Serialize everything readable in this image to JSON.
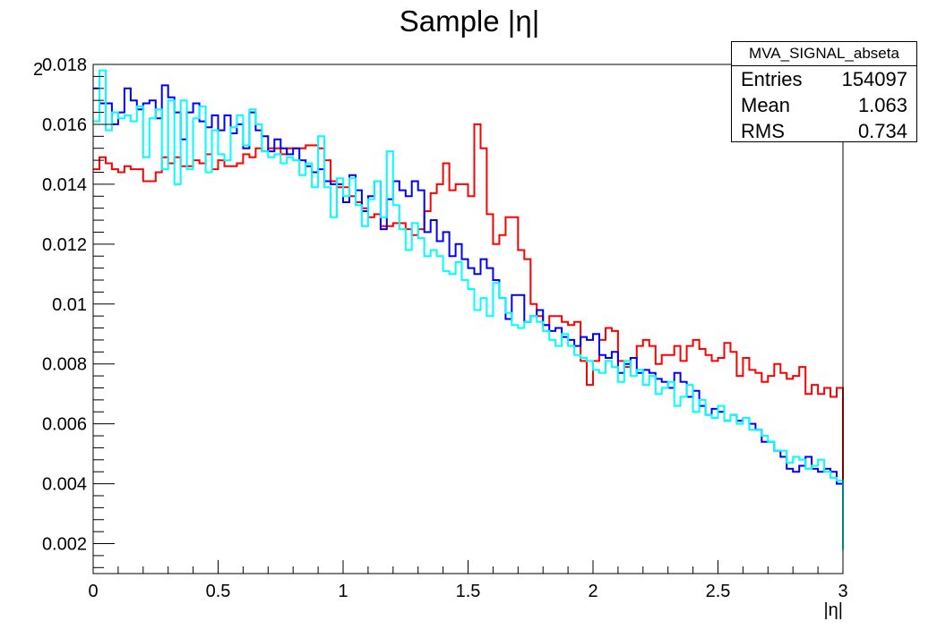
{
  "chart_data": {
    "type": "line",
    "title": "Sample |η|",
    "xlabel": "|η|",
    "ylabel": "",
    "xlim": [
      0,
      3
    ],
    "ylim": [
      0.001,
      0.018
    ],
    "x_ticks": [
      "0",
      "0.5",
      "1",
      "1.5",
      "2",
      "2.5",
      "3"
    ],
    "y_ticks": [
      "0.002",
      "0.004",
      "0.006",
      "0.008",
      "0.01",
      "0.012",
      "0.014",
      "0.016",
      "0.018"
    ],
    "y_exponent_label": "2",
    "bin_width": 0.025,
    "grid": false,
    "legend": "none",
    "series": [
      {
        "color": "#ff0000",
        "values": [
          0.0145,
          0.0149,
          0.0147,
          0.0145,
          0.0144,
          0.0146,
          0.0145,
          0.0145,
          0.0141,
          0.0141,
          0.0144,
          0.0149,
          0.0147,
          0.0149,
          0.0146,
          0.0146,
          0.0148,
          0.0147,
          0.015,
          0.0145,
          0.0148,
          0.0146,
          0.0146,
          0.0147,
          0.015,
          0.0149,
          0.0152,
          0.0151,
          0.0152,
          0.0152,
          0.015,
          0.0152,
          0.0152,
          0.0152,
          0.0153,
          0.0153,
          0.0152,
          0.0148,
          0.0141,
          0.0139,
          0.0139,
          0.0136,
          0.0134,
          0.0132,
          0.0129,
          0.013,
          0.0126,
          0.0126,
          0.0127,
          0.0127,
          0.0125,
          0.0123,
          0.0125,
          0.0131,
          0.0137,
          0.014,
          0.0147,
          0.0138,
          0.014,
          0.014,
          0.0136,
          0.016,
          0.0152,
          0.013,
          0.012,
          0.0123,
          0.0129,
          0.0129,
          0.0118,
          0.0115,
          0.01,
          0.0096,
          0.0093,
          0.0096,
          0.0096,
          0.0094,
          0.0093,
          0.0094,
          0.0081,
          0.0073,
          0.0081,
          0.0088,
          0.0092,
          0.0091,
          0.0081,
          0.0079,
          0.0082,
          0.0086,
          0.0088,
          0.0086,
          0.008,
          0.0083,
          0.0083,
          0.0086,
          0.0081,
          0.0086,
          0.0088,
          0.0085,
          0.0083,
          0.0081,
          0.0082,
          0.0087,
          0.0084,
          0.0076,
          0.0082,
          0.0078,
          0.0077,
          0.0074,
          0.0076,
          0.008,
          0.0077,
          0.0075,
          0.0076,
          0.0079,
          0.007,
          0.0073,
          0.007,
          0.0072,
          0.0069,
          0.0072,
          0.0061,
          0.0066,
          0.0066,
          0.0072,
          0.0065,
          0.0058,
          0.0057,
          0.0055,
          0.0051,
          0.0049,
          0.0048,
          0.0049,
          0.005,
          0.0046,
          0.005,
          0.0044,
          0.004,
          0.0045,
          0.0039,
          0.0042,
          0.0046,
          0.0043,
          0.004,
          0.0038,
          0.0035,
          0.0037,
          0.0044,
          0.0048,
          0.0043,
          0.0047,
          0.0045,
          0.004,
          0.0034,
          0.003,
          0.0034,
          0.0038,
          0.0035,
          0.0031,
          0.0036,
          0.0041,
          0.0039,
          0.0042,
          0.004,
          0.0041,
          0.0038,
          0.0035,
          0.0037,
          0.0038,
          0.0036,
          0.004,
          0.0038,
          0.0041,
          0.0043,
          0.0039,
          0.0043,
          0.0044,
          0.0041,
          0.0039,
          0.0038,
          0.004,
          0.0041,
          0.0043,
          0.004,
          0.0045,
          0.0042,
          0.0044,
          0.0037,
          0.0044,
          0.0049,
          0.0044,
          0.0052,
          0.0043,
          0.0045,
          0.0042,
          0.0049,
          0.0051,
          0.0049,
          0.0053,
          0.0049,
          0.0044,
          0.0046,
          0.0054,
          0.0046,
          0.0041,
          0.0035,
          0.0047,
          0.0049,
          0.0042,
          0.0047,
          0.0048,
          0.0044,
          0.0044,
          0.0047,
          0.0046,
          0.0045,
          0.0048
        ]
      },
      {
        "color": "#0000ff",
        "values": [
          0.0172,
          0.0167,
          0.0167,
          0.016,
          0.0164,
          0.0172,
          0.0168,
          0.0165,
          0.0167,
          0.0168,
          0.0162,
          0.0173,
          0.0169,
          0.0164,
          0.0155,
          0.0164,
          0.0167,
          0.0161,
          0.0159,
          0.0163,
          0.0158,
          0.0163,
          0.0157,
          0.016,
          0.0152,
          0.0164,
          0.0158,
          0.0156,
          0.0151,
          0.0155,
          0.0152,
          0.015,
          0.0152,
          0.0148,
          0.0146,
          0.0144,
          0.0145,
          0.0141,
          0.014,
          0.014,
          0.0134,
          0.0143,
          0.0138,
          0.0131,
          0.0136,
          0.0141,
          0.0125,
          0.0135,
          0.0141,
          0.0138,
          0.0136,
          0.0141,
          0.0138,
          0.0124,
          0.0128,
          0.0121,
          0.0124,
          0.0116,
          0.012,
          0.0115,
          0.0112,
          0.011,
          0.0115,
          0.0112,
          0.0108,
          0.0102,
          0.0095,
          0.0103,
          0.0103,
          0.0094,
          0.0096,
          0.0098,
          0.0093,
          0.0091,
          0.0092,
          0.0089,
          0.0088,
          0.0086,
          0.0089,
          0.0088,
          0.009,
          0.0083,
          0.0082,
          0.0084,
          0.0077,
          0.008,
          0.0082,
          0.0077,
          0.0078,
          0.0077,
          0.0075,
          0.0074,
          0.0072,
          0.0077,
          0.0074,
          0.0069,
          0.0071,
          0.0066,
          0.0063,
          0.0065,
          0.0064,
          0.0061,
          0.0063,
          0.0061,
          0.0062,
          0.006,
          0.0058,
          0.0054,
          0.0054,
          0.0051,
          0.0049,
          0.0045,
          0.0044,
          0.0046,
          0.0049,
          0.0045,
          0.0044,
          0.0045,
          0.0044,
          0.004,
          0.0038,
          0.0037,
          0.0038,
          0.0036,
          0.0037,
          0.0039,
          0.0034,
          0.0035,
          0.0032,
          0.003,
          0.0033,
          0.0031,
          0.0028,
          0.0028,
          0.003,
          0.0027,
          0.003,
          0.0027,
          0.0026,
          0.0028,
          0.0025,
          0.0027,
          0.0029,
          0.0026,
          0.0024,
          0.0025,
          0.0028,
          0.003,
          0.0028,
          0.0024,
          0.0023,
          0.0022,
          0.0023,
          0.0026,
          0.0028,
          0.0029,
          0.003,
          0.0028,
          0.0025,
          0.0026,
          0.0024,
          0.0022,
          0.0025,
          0.0021,
          0.0023,
          0.0026,
          0.0024,
          0.0026,
          0.0025,
          0.0022,
          0.0024,
          0.0026,
          0.0022,
          0.0024,
          0.0021,
          0.0023,
          0.0025,
          0.0028,
          0.0023,
          0.0022,
          0.0024,
          0.0025,
          0.0021,
          0.002,
          0.0023,
          0.0021,
          0.0024,
          0.0022,
          0.0025,
          0.002,
          0.0023,
          0.0024,
          0.0021,
          0.0022,
          0.0019,
          0.0023,
          0.002,
          0.0023,
          0.0022,
          0.0024,
          0.0022,
          0.0021,
          0.0023,
          0.0021,
          0.002,
          0.0021,
          0.0023,
          0.0018,
          0.0022,
          0.0022,
          0.0022,
          0.0022
        ]
      },
      {
        "color": "#00ffff",
        "values": [
          0.0161,
          0.0178,
          0.0158,
          0.0164,
          0.0162,
          0.0163,
          0.0161,
          0.0166,
          0.0149,
          0.0162,
          0.0165,
          0.0145,
          0.0168,
          0.014,
          0.0168,
          0.0145,
          0.0162,
          0.0166,
          0.0144,
          0.0158,
          0.015,
          0.0148,
          0.0159,
          0.0163,
          0.0153,
          0.0165,
          0.016,
          0.0151,
          0.0149,
          0.015,
          0.0147,
          0.0149,
          0.0148,
          0.0143,
          0.0147,
          0.0139,
          0.0156,
          0.0139,
          0.0129,
          0.0142,
          0.0136,
          0.0142,
          0.0133,
          0.0126,
          0.0135,
          0.0141,
          0.0129,
          0.0151,
          0.0133,
          0.0125,
          0.0118,
          0.0127,
          0.0122,
          0.0116,
          0.0118,
          0.0116,
          0.0111,
          0.011,
          0.0114,
          0.0108,
          0.0105,
          0.0098,
          0.0102,
          0.0096,
          0.0107,
          0.0102,
          0.0097,
          0.0093,
          0.0092,
          0.0094,
          0.0096,
          0.0094,
          0.0091,
          0.0088,
          0.0086,
          0.009,
          0.0086,
          0.0083,
          0.0082,
          0.0081,
          0.0078,
          0.0077,
          0.0081,
          0.0079,
          0.0074,
          0.0081,
          0.0076,
          0.0078,
          0.0073,
          0.0076,
          0.007,
          0.0072,
          0.0074,
          0.0066,
          0.0069,
          0.0073,
          0.0064,
          0.0068,
          0.0063,
          0.0062,
          0.0066,
          0.0061,
          0.0063,
          0.006,
          0.0062,
          0.0058,
          0.0058,
          0.0056,
          0.0054,
          0.0051,
          0.0051,
          0.0047,
          0.0049,
          0.0048,
          0.0045,
          0.0046,
          0.0048,
          0.0044,
          0.0042,
          0.0041,
          0.0037,
          0.004,
          0.0039,
          0.0038,
          0.0039,
          0.0036,
          0.0037,
          0.0035,
          0.0036,
          0.0034,
          0.0031,
          0.0033,
          0.0031,
          0.003,
          0.0031,
          0.0029,
          0.003,
          0.003,
          0.0027,
          0.0029,
          0.0028,
          0.0026,
          0.0028,
          0.0027,
          0.0026,
          0.0029,
          0.0024,
          0.0026,
          0.0026,
          0.0023,
          0.0024,
          0.0025,
          0.0027,
          0.0028,
          0.0026,
          0.0025,
          0.0024,
          0.0026,
          0.0023,
          0.0022,
          0.0024,
          0.0025,
          0.0023,
          0.0022,
          0.0021,
          0.0024,
          0.0022,
          0.0021,
          0.0023,
          0.0024,
          0.0021,
          0.0022,
          0.002,
          0.0022,
          0.0021,
          0.0022,
          0.0024,
          0.002,
          0.0022,
          0.0023,
          0.0021,
          0.002,
          0.0022,
          0.0021,
          0.0019,
          0.0023,
          0.0021,
          0.0022,
          0.002,
          0.0018,
          0.0022,
          0.0021,
          0.002,
          0.0023,
          0.0021,
          0.0019,
          0.002,
          0.0021,
          0.0022,
          0.002,
          0.0021,
          0.0023,
          0.0019,
          0.0024,
          0.0023,
          0.0022,
          0.0025,
          0.0024,
          0.0025
        ]
      }
    ]
  },
  "stats": {
    "title": "MVA_SIGNAL_abseta",
    "rows": [
      {
        "label": "Entries",
        "value": "154097"
      },
      {
        "label": "Mean",
        "value": "1.063"
      },
      {
        "label": "RMS",
        "value": "0.734"
      }
    ]
  }
}
